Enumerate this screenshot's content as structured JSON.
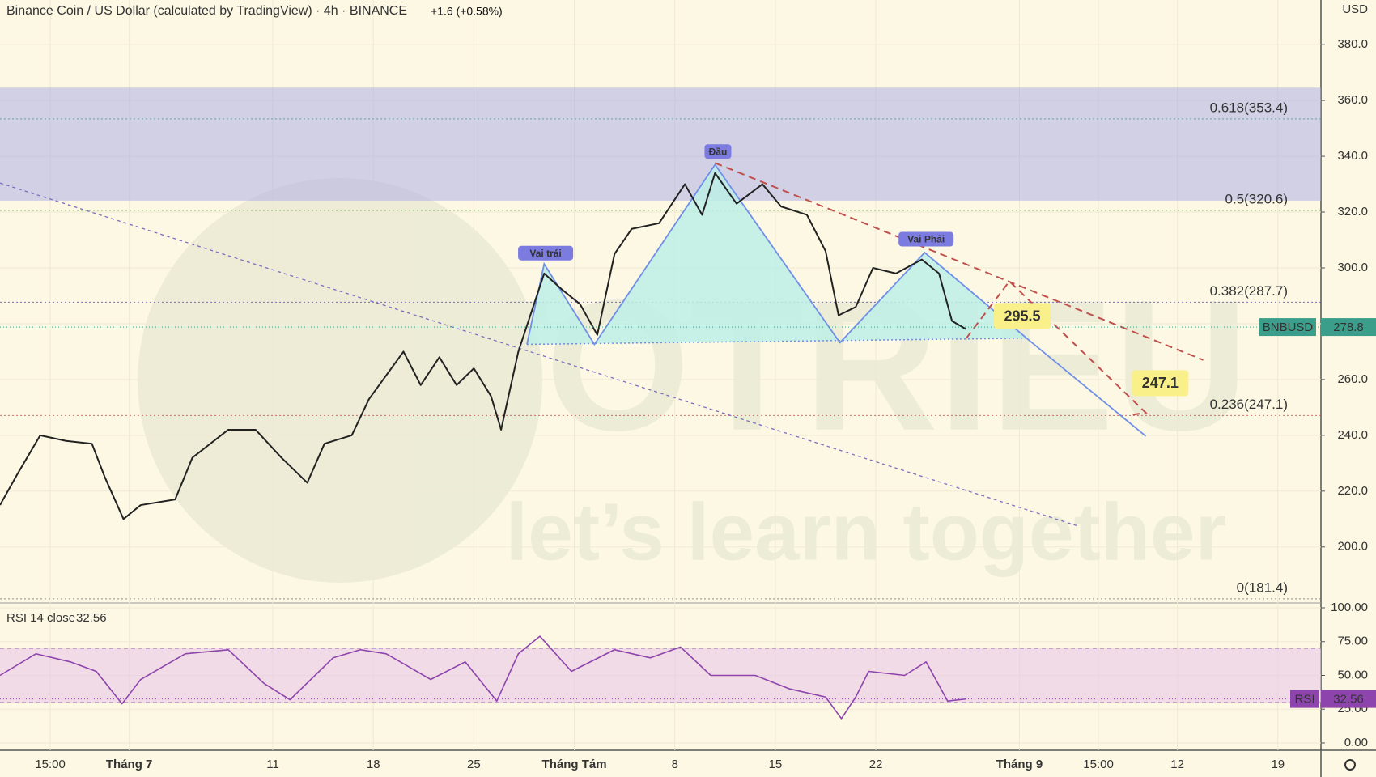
{
  "watermark": {
    "brand": "TOTRIEU",
    "slogan": "let’s learn together"
  },
  "chart_data": [
    {
      "type": "line",
      "title": "Binance Coin / US Dollar (calculated by TradingView) · 4h · BINANCE",
      "change": "+1.6 (+0.58%)",
      "currency": "USD",
      "xlim": [
        -9,
        83
      ],
      "ylim": [
        180.5,
        396
      ],
      "yticks": [
        {
          "value": 200,
          "label": "200.0"
        },
        {
          "value": 220,
          "label": "220.0"
        },
        {
          "value": 240,
          "label": "240.0"
        },
        {
          "value": 260,
          "label": "260.0"
        },
        {
          "value": 280,
          "label": "280.0"
        },
        {
          "value": 300,
          "label": "300.0"
        },
        {
          "value": 320,
          "label": "320.0"
        },
        {
          "value": 340,
          "label": "340.0"
        },
        {
          "value": 360,
          "label": "360.0"
        },
        {
          "value": 380,
          "label": "380.0"
        }
      ],
      "xticks": [
        {
          "value": -5.5,
          "label": "15:00"
        },
        {
          "value": 0,
          "label": "Tháng 7"
        },
        {
          "value": 10,
          "label": "11"
        },
        {
          "value": 17,
          "label": "18"
        },
        {
          "value": 24,
          "label": "25"
        },
        {
          "value": 31,
          "label": "Tháng Tám"
        },
        {
          "value": 38,
          "label": "8"
        },
        {
          "value": 45,
          "label": "15"
        },
        {
          "value": 52,
          "label": "22"
        },
        {
          "value": 62,
          "label": "Tháng 9"
        },
        {
          "value": 67.5,
          "label": "15:00"
        },
        {
          "value": 73,
          "label": "12"
        },
        {
          "value": 80,
          "label": "19"
        }
      ],
      "series": [
        {
          "name": "BNBUSD",
          "color": "#222222",
          "tag_color": "#3a9e8a",
          "last": 278.8,
          "x": [
            -9,
            -7.8,
            -6.2,
            -4.4,
            -2.6,
            -1.7,
            -0.4,
            0.8,
            3.2,
            4.4,
            6.9,
            8.8,
            10.6,
            12.4,
            13.6,
            15.5,
            16.7,
            19.1,
            20.3,
            21.6,
            22.8,
            24.0,
            25.2,
            25.9,
            27.1,
            28.9,
            30.2,
            31.4,
            32.6,
            33.8,
            35.0,
            36.9,
            38.7,
            39.9,
            40.8,
            42.3,
            44.1,
            45.4,
            47.2,
            48.5,
            49.4,
            50.6,
            51.8,
            53.4,
            55.2,
            56.4,
            57.3,
            58.3
          ],
          "values": [
            215,
            226,
            240,
            238,
            237,
            225,
            210,
            215,
            217,
            232,
            242,
            242,
            232,
            223,
            237,
            240,
            253,
            270,
            258,
            268,
            258,
            264,
            254,
            242,
            270,
            298,
            292,
            287,
            276,
            305,
            314,
            316,
            330,
            319,
            334,
            323,
            330,
            322,
            319,
            306,
            283,
            286,
            300,
            298,
            303,
            298,
            281,
            278
          ]
        }
      ],
      "zone": {
        "color": "#a8a8e6",
        "range": [
          324.1,
          364.6
        ]
      },
      "fib": [
        {
          "label": "0.618(353.4)",
          "value": 353.4,
          "color": "#4a9a8a"
        },
        {
          "label": "0.5(320.6)",
          "value": 320.6,
          "color": "#6aa84f"
        },
        {
          "label": "0.382(287.7)",
          "value": 287.7,
          "color": "#5b4ea8"
        },
        {
          "label": "0.236(247.1)",
          "value": 247.1,
          "color": "#c0504d"
        },
        {
          "label": "0(181.4)",
          "value": 181.4,
          "color": "#777777"
        }
      ],
      "pattern": {
        "color": "#6f8fe8",
        "fill": "#bdeee6",
        "x": [
          27.7,
          28.9,
          32.4,
          40.8,
          49.5,
          55.4,
          62.5,
          70.8
        ],
        "y": [
          272.6,
          301.4,
          272.6,
          337.0,
          273.2,
          305.5,
          274.8,
          239.7
        ],
        "labels": [
          {
            "text": "Vai trái",
            "x": 29,
            "y": 305.3
          },
          {
            "text": "Đầu",
            "x": 41,
            "y": 341.7
          },
          {
            "text": "Vai Phải",
            "x": 55.5,
            "y": 310.3
          }
        ]
      },
      "downtrend": {
        "color": "#7b6fc0",
        "x": [
          -9,
          66.2
        ],
        "y": [
          330.4,
          207.3
        ]
      },
      "resistance": {
        "color": "#c0504d",
        "x": [
          40.8,
          74.8
        ],
        "y": [
          337.6,
          267
        ]
      },
      "projection": {
        "color": "#c0504d",
        "x": [
          58.3,
          61.3,
          70.8,
          69.9
        ],
        "y": [
          274.8,
          295.2,
          248.1,
          247.4
        ]
      },
      "targets": [
        {
          "value": 295.5,
          "x": 62.2
        },
        {
          "value": 247.1,
          "x": 71.8
        }
      ]
    },
    {
      "type": "line",
      "title": "RSI 14 close",
      "tag": "RSI",
      "xlim": [
        -9,
        83
      ],
      "ylim": [
        0,
        100
      ],
      "bands": [
        30,
        70
      ],
      "yticks": [
        {
          "value": 0,
          "label": "0.00"
        },
        {
          "value": 25,
          "label": "25.00"
        },
        {
          "value": 50,
          "label": "50.00"
        },
        {
          "value": 75,
          "label": "75.00"
        },
        {
          "value": 100,
          "label": "100.00"
        }
      ],
      "series": [
        {
          "name": "RSI",
          "color": "#8e44ad",
          "last": 32.56,
          "x": [
            -9,
            -6.5,
            -4.1,
            -2.3,
            -0.5,
            0.8,
            3.9,
            6.9,
            9.4,
            11.2,
            14.2,
            16.1,
            17.9,
            21.0,
            23.4,
            25.6,
            27.1,
            28.6,
            30.8,
            33.8,
            36.3,
            38.4,
            40.5,
            43.6,
            46.0,
            48.5,
            49.6,
            50.6,
            51.5,
            54.0,
            55.5,
            57.0,
            58.3
          ],
          "values": [
            50,
            66,
            60,
            53,
            29,
            47,
            66,
            69,
            44,
            32,
            63,
            69,
            66,
            47,
            60,
            31,
            66,
            79,
            53,
            69,
            63,
            71,
            50,
            50,
            40,
            34,
            18,
            34,
            53,
            50,
            60,
            31,
            32.56
          ]
        }
      ]
    }
  ]
}
